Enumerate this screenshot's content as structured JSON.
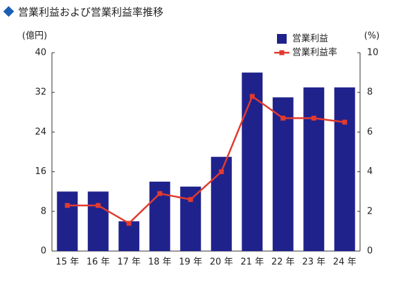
{
  "chart_data": {
    "type": "bar",
    "title": "営業利益および営業利益率推移",
    "y_label": "(億円)",
    "y2_label": "(%)",
    "categories": [
      "15 年",
      "16 年",
      "17 年",
      "18 年",
      "19 年",
      "20 年",
      "21 年",
      "22 年",
      "23 年",
      "24 年"
    ],
    "series": [
      {
        "name": "営業利益",
        "type": "bar",
        "color": "#20228c",
        "values": [
          12,
          12,
          6,
          14,
          13,
          19,
          36,
          31,
          33,
          33
        ]
      },
      {
        "name": "営業利益率",
        "type": "line",
        "axis": "y2",
        "color": "#e23a2e",
        "values": [
          2.3,
          2.3,
          1.4,
          2.9,
          2.6,
          4.0,
          7.8,
          6.7,
          6.7,
          6.5
        ]
      }
    ],
    "ylim": [
      0,
      40
    ],
    "yticks": [
      0,
      8,
      16,
      24,
      32,
      40
    ],
    "y2lim": [
      0,
      10
    ],
    "y2ticks": [
      0,
      2,
      4,
      6,
      8,
      10
    ],
    "legend": "top-right",
    "grid": false
  }
}
